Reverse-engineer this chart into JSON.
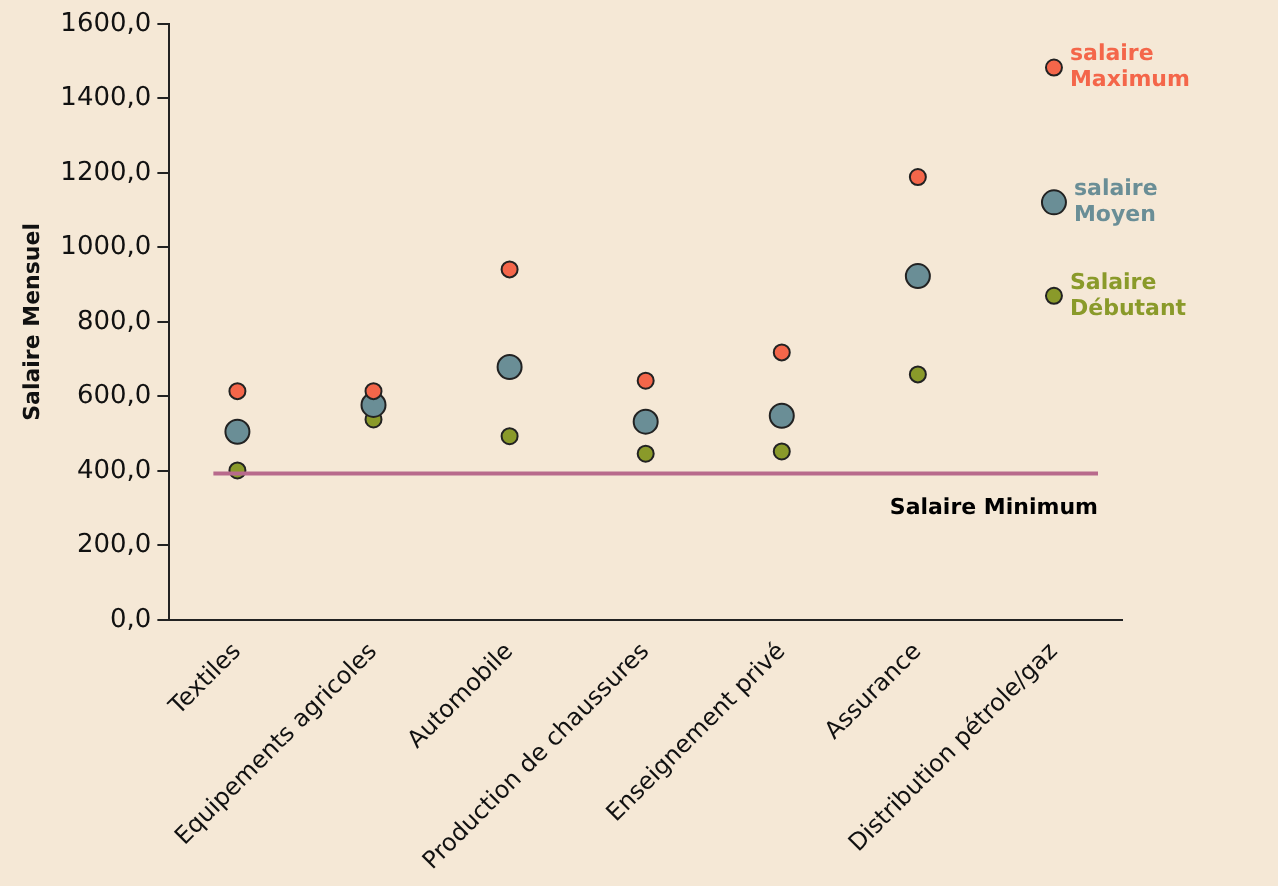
{
  "chart_data": {
    "type": "scatter",
    "ylabel": "Salaire Mensuel",
    "categories": [
      "Textiles",
      "Equipements agricoles",
      "Automobile",
      "Production de chaussures",
      "Enseignement privé",
      "Assurance",
      "Distribution pétrole/gaz"
    ],
    "series": [
      {
        "name": "salaire Maximum",
        "color": "#f4664a",
        "values": [
          614,
          614,
          941,
          642,
          718,
          1189,
          1483
        ]
      },
      {
        "name": "salaire Moyen",
        "color": "#6a8e96",
        "values": [
          505,
          577,
          679,
          532,
          548,
          923,
          1121
        ]
      },
      {
        "name": "Salaire Débutant",
        "color": "#8a9a2a",
        "values": [
          401,
          538,
          493,
          446,
          452,
          659,
          870
        ]
      }
    ],
    "ylim": [
      0,
      1600
    ],
    "yticks": [
      {
        "value": 0,
        "label": "0,0"
      },
      {
        "value": 200,
        "label": "200,0"
      },
      {
        "value": 400,
        "label": "400,0"
      },
      {
        "value": 600,
        "label": "600,0"
      },
      {
        "value": 800,
        "label": "800,0"
      },
      {
        "value": 1000,
        "label": "1000,0"
      },
      {
        "value": 1200,
        "label": "1200,0"
      },
      {
        "value": 1400,
        "label": "1400,0"
      },
      {
        "value": 1600,
        "label": "1600,0"
      }
    ],
    "ref_lines": [
      {
        "axis": "y",
        "value": 393,
        "label": "Salaire Minimum",
        "color": "#b86a8c"
      }
    ],
    "grid": false,
    "legend": false,
    "marker": "circle"
  }
}
